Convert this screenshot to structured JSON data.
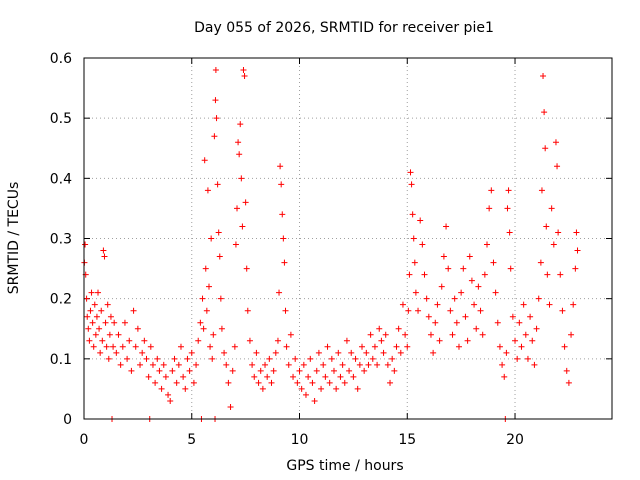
{
  "chart_data": {
    "type": "scatter",
    "title": "Day 055 of 2026, SRMTID for receiver pie1",
    "xlabel": "GPS time / hours",
    "ylabel": "SRMTID / TECUs",
    "xlim": [
      0,
      24.5
    ],
    "ylim": [
      0,
      0.6
    ],
    "xticks": [
      0,
      5,
      10,
      15,
      20
    ],
    "yticks": [
      0,
      0.1,
      0.2,
      0.3,
      0.4,
      0.5,
      0.6
    ],
    "xtick_labels": [
      "0",
      "5",
      "10",
      "15",
      "20"
    ],
    "ytick_labels": [
      "0",
      "0.1",
      "0.2",
      "0.3",
      "0.4",
      "0.5",
      "0.6"
    ],
    "grid": true,
    "marker": "plus",
    "series_color": "#ff0000",
    "series": [
      {
        "name": "pie1",
        "points": [
          [
            0.02,
            0.26
          ],
          [
            0.05,
            0.29
          ],
          [
            0.08,
            0.24
          ],
          [
            0.12,
            0.2
          ],
          [
            0.15,
            0.17
          ],
          [
            0.2,
            0.15
          ],
          [
            0.25,
            0.13
          ],
          [
            0.3,
            0.18
          ],
          [
            0.35,
            0.21
          ],
          [
            0.4,
            0.16
          ],
          [
            0.45,
            0.12
          ],
          [
            0.5,
            0.19
          ],
          [
            0.55,
            0.14
          ],
          [
            0.6,
            0.17
          ],
          [
            0.65,
            0.21
          ],
          [
            0.7,
            0.15
          ],
          [
            0.75,
            0.11
          ],
          [
            0.8,
            0.18
          ],
          [
            0.85,
            0.13
          ],
          [
            0.9,
            0.28
          ],
          [
            0.95,
            0.27
          ],
          [
            1.0,
            0.16
          ],
          [
            1.05,
            0.12
          ],
          [
            1.1,
            0.19
          ],
          [
            1.15,
            0.1
          ],
          [
            1.2,
            0.14
          ],
          [
            1.25,
            0.17
          ],
          [
            1.3,
            0.0
          ],
          [
            1.35,
            0.12
          ],
          [
            1.4,
            0.16
          ],
          [
            1.5,
            0.11
          ],
          [
            1.6,
            0.14
          ],
          [
            1.7,
            0.09
          ],
          [
            1.8,
            0.12
          ],
          [
            1.9,
            0.16
          ],
          [
            2.0,
            0.1
          ],
          [
            2.1,
            0.13
          ],
          [
            2.2,
            0.08
          ],
          [
            2.3,
            0.18
          ],
          [
            2.4,
            0.12
          ],
          [
            2.5,
            0.15
          ],
          [
            2.6,
            0.09
          ],
          [
            2.7,
            0.11
          ],
          [
            2.8,
            0.13
          ],
          [
            2.9,
            0.1
          ],
          [
            3.0,
            0.07
          ],
          [
            3.05,
            0.0
          ],
          [
            3.1,
            0.12
          ],
          [
            3.2,
            0.09
          ],
          [
            3.3,
            0.06
          ],
          [
            3.4,
            0.1
          ],
          [
            3.5,
            0.08
          ],
          [
            3.6,
            0.05
          ],
          [
            3.7,
            0.09
          ],
          [
            3.8,
            0.07
          ],
          [
            3.9,
            0.04
          ],
          [
            4.0,
            0.03
          ],
          [
            4.1,
            0.08
          ],
          [
            4.2,
            0.1
          ],
          [
            4.3,
            0.06
          ],
          [
            4.4,
            0.09
          ],
          [
            4.5,
            0.12
          ],
          [
            4.6,
            0.07
          ],
          [
            4.7,
            0.05
          ],
          [
            4.8,
            0.1
          ],
          [
            4.9,
            0.08
          ],
          [
            5.0,
            0.11
          ],
          [
            5.1,
            0.06
          ],
          [
            5.2,
            0.09
          ],
          [
            5.3,
            0.13
          ],
          [
            5.4,
            0.16
          ],
          [
            5.45,
            0.0
          ],
          [
            5.5,
            0.2
          ],
          [
            5.55,
            0.15
          ],
          [
            5.6,
            0.43
          ],
          [
            5.65,
            0.25
          ],
          [
            5.7,
            0.18
          ],
          [
            5.75,
            0.38
          ],
          [
            5.8,
            0.22
          ],
          [
            5.85,
            0.12
          ],
          [
            5.9,
            0.3
          ],
          [
            5.95,
            0.1
          ],
          [
            6.0,
            0.14
          ],
          [
            6.05,
            0.47
          ],
          [
            6.08,
            0.0
          ],
          [
            6.1,
            0.53
          ],
          [
            6.12,
            0.58
          ],
          [
            6.15,
            0.5
          ],
          [
            6.2,
            0.39
          ],
          [
            6.25,
            0.31
          ],
          [
            6.3,
            0.27
          ],
          [
            6.35,
            0.2
          ],
          [
            6.4,
            0.15
          ],
          [
            6.5,
            0.11
          ],
          [
            6.6,
            0.09
          ],
          [
            6.7,
            0.06
          ],
          [
            6.8,
            0.02
          ],
          [
            6.9,
            0.08
          ],
          [
            7.0,
            0.12
          ],
          [
            7.05,
            0.29
          ],
          [
            7.1,
            0.35
          ],
          [
            7.15,
            0.46
          ],
          [
            7.2,
            0.44
          ],
          [
            7.25,
            0.49
          ],
          [
            7.3,
            0.4
          ],
          [
            7.35,
            0.32
          ],
          [
            7.4,
            0.58
          ],
          [
            7.45,
            0.57
          ],
          [
            7.5,
            0.36
          ],
          [
            7.55,
            0.25
          ],
          [
            7.6,
            0.18
          ],
          [
            7.7,
            0.13
          ],
          [
            7.8,
            0.09
          ],
          [
            7.9,
            0.07
          ],
          [
            8.0,
            0.11
          ],
          [
            8.1,
            0.06
          ],
          [
            8.2,
            0.08
          ],
          [
            8.3,
            0.05
          ],
          [
            8.4,
            0.09
          ],
          [
            8.5,
            0.07
          ],
          [
            8.6,
            0.1
          ],
          [
            8.7,
            0.06
          ],
          [
            8.8,
            0.08
          ],
          [
            8.9,
            0.11
          ],
          [
            9.0,
            0.13
          ],
          [
            9.05,
            0.21
          ],
          [
            9.1,
            0.42
          ],
          [
            9.15,
            0.39
          ],
          [
            9.2,
            0.34
          ],
          [
            9.25,
            0.3
          ],
          [
            9.3,
            0.26
          ],
          [
            9.35,
            0.18
          ],
          [
            9.4,
            0.12
          ],
          [
            9.5,
            0.09
          ],
          [
            9.6,
            0.14
          ],
          [
            9.7,
            0.07
          ],
          [
            9.8,
            0.1
          ],
          [
            9.9,
            0.06
          ],
          [
            10.0,
            0.08
          ],
          [
            10.1,
            0.05
          ],
          [
            10.2,
            0.09
          ],
          [
            10.3,
            0.04
          ],
          [
            10.4,
            0.07
          ],
          [
            10.5,
            0.1
          ],
          [
            10.6,
            0.06
          ],
          [
            10.7,
            0.03
          ],
          [
            10.8,
            0.08
          ],
          [
            10.9,
            0.11
          ],
          [
            11.0,
            0.05
          ],
          [
            11.1,
            0.09
          ],
          [
            11.2,
            0.07
          ],
          [
            11.3,
            0.12
          ],
          [
            11.4,
            0.06
          ],
          [
            11.5,
            0.1
          ],
          [
            11.6,
            0.08
          ],
          [
            11.7,
            0.05
          ],
          [
            11.8,
            0.11
          ],
          [
            11.9,
            0.07
          ],
          [
            12.0,
            0.09
          ],
          [
            12.1,
            0.06
          ],
          [
            12.2,
            0.13
          ],
          [
            12.3,
            0.08
          ],
          [
            12.4,
            0.11
          ],
          [
            12.5,
            0.07
          ],
          [
            12.6,
            0.1
          ],
          [
            12.7,
            0.05
          ],
          [
            12.8,
            0.09
          ],
          [
            12.9,
            0.12
          ],
          [
            13.0,
            0.08
          ],
          [
            13.1,
            0.11
          ],
          [
            13.2,
            0.09
          ],
          [
            13.3,
            0.14
          ],
          [
            13.4,
            0.1
          ],
          [
            13.5,
            0.12
          ],
          [
            13.6,
            0.09
          ],
          [
            13.7,
            0.15
          ],
          [
            13.8,
            0.13
          ],
          [
            13.9,
            0.11
          ],
          [
            14.0,
            0.14
          ],
          [
            14.1,
            0.09
          ],
          [
            14.2,
            0.06
          ],
          [
            14.3,
            0.1
          ],
          [
            14.4,
            0.08
          ],
          [
            14.5,
            0.12
          ],
          [
            14.6,
            0.15
          ],
          [
            14.7,
            0.11
          ],
          [
            14.8,
            0.19
          ],
          [
            14.9,
            0.14
          ],
          [
            15.0,
            0.12
          ],
          [
            15.05,
            0.18
          ],
          [
            15.1,
            0.24
          ],
          [
            15.15,
            0.41
          ],
          [
            15.2,
            0.39
          ],
          [
            15.25,
            0.34
          ],
          [
            15.3,
            0.3
          ],
          [
            15.35,
            0.26
          ],
          [
            15.4,
            0.21
          ],
          [
            15.5,
            0.18
          ],
          [
            15.6,
            0.33
          ],
          [
            15.7,
            0.29
          ],
          [
            15.8,
            0.24
          ],
          [
            15.9,
            0.2
          ],
          [
            16.0,
            0.17
          ],
          [
            16.1,
            0.14
          ],
          [
            16.2,
            0.11
          ],
          [
            16.3,
            0.16
          ],
          [
            16.4,
            0.19
          ],
          [
            16.5,
            0.13
          ],
          [
            16.6,
            0.22
          ],
          [
            16.7,
            0.27
          ],
          [
            16.8,
            0.32
          ],
          [
            16.9,
            0.25
          ],
          [
            17.0,
            0.18
          ],
          [
            17.1,
            0.14
          ],
          [
            17.2,
            0.2
          ],
          [
            17.3,
            0.16
          ],
          [
            17.4,
            0.12
          ],
          [
            17.5,
            0.21
          ],
          [
            17.6,
            0.25
          ],
          [
            17.7,
            0.17
          ],
          [
            17.8,
            0.13
          ],
          [
            17.9,
            0.27
          ],
          [
            18.0,
            0.23
          ],
          [
            18.1,
            0.19
          ],
          [
            18.2,
            0.15
          ],
          [
            18.3,
            0.22
          ],
          [
            18.4,
            0.18
          ],
          [
            18.5,
            0.14
          ],
          [
            18.6,
            0.24
          ],
          [
            18.7,
            0.29
          ],
          [
            18.8,
            0.35
          ],
          [
            18.9,
            0.38
          ],
          [
            19.0,
            0.26
          ],
          [
            19.1,
            0.21
          ],
          [
            19.2,
            0.16
          ],
          [
            19.3,
            0.12
          ],
          [
            19.4,
            0.09
          ],
          [
            19.5,
            0.07
          ],
          [
            19.55,
            0.0
          ],
          [
            19.6,
            0.11
          ],
          [
            19.65,
            0.35
          ],
          [
            19.7,
            0.38
          ],
          [
            19.75,
            0.31
          ],
          [
            19.8,
            0.25
          ],
          [
            19.9,
            0.17
          ],
          [
            20.0,
            0.13
          ],
          [
            20.1,
            0.1
          ],
          [
            20.2,
            0.16
          ],
          [
            20.3,
            0.12
          ],
          [
            20.4,
            0.19
          ],
          [
            20.5,
            0.14
          ],
          [
            20.6,
            0.1
          ],
          [
            20.7,
            0.17
          ],
          [
            20.8,
            0.13
          ],
          [
            20.9,
            0.09
          ],
          [
            21.0,
            0.15
          ],
          [
            21.1,
            0.2
          ],
          [
            21.2,
            0.26
          ],
          [
            21.25,
            0.38
          ],
          [
            21.3,
            0.57
          ],
          [
            21.35,
            0.51
          ],
          [
            21.4,
            0.45
          ],
          [
            21.45,
            0.32
          ],
          [
            21.5,
            0.24
          ],
          [
            21.6,
            0.19
          ],
          [
            21.7,
            0.35
          ],
          [
            21.8,
            0.29
          ],
          [
            21.9,
            0.46
          ],
          [
            21.95,
            0.42
          ],
          [
            22.0,
            0.31
          ],
          [
            22.1,
            0.24
          ],
          [
            22.2,
            0.18
          ],
          [
            22.3,
            0.12
          ],
          [
            22.4,
            0.08
          ],
          [
            22.5,
            0.06
          ],
          [
            22.6,
            0.14
          ],
          [
            22.7,
            0.19
          ],
          [
            22.8,
            0.25
          ],
          [
            22.85,
            0.31
          ],
          [
            22.9,
            0.28
          ]
        ]
      }
    ]
  }
}
